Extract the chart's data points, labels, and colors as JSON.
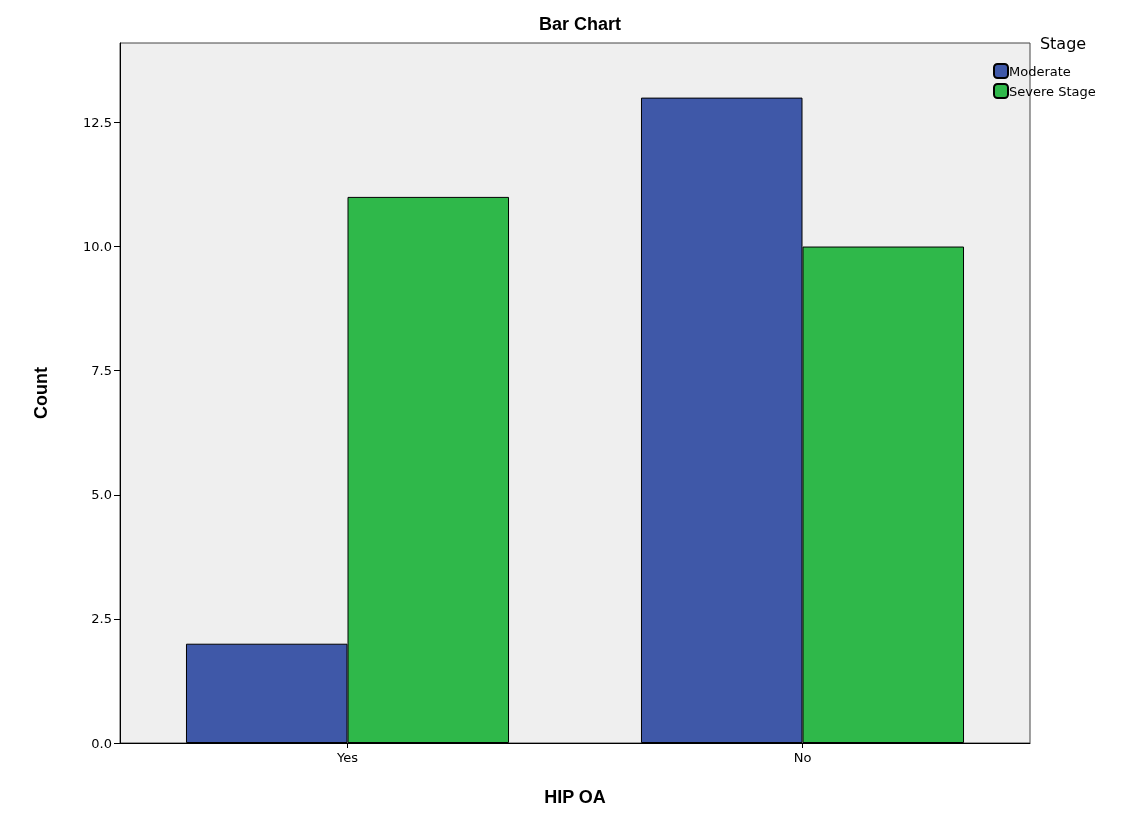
{
  "chart_data": {
    "type": "bar",
    "title": "Bar Chart",
    "xlabel": "HIP OA",
    "ylabel": "Count",
    "legend_title": "Stage",
    "categories": [
      "Yes",
      "No"
    ],
    "series": [
      {
        "name": "Moderate",
        "color": "#3f58a8",
        "values": [
          2,
          13
        ]
      },
      {
        "name": "Severe Stage",
        "color": "#2fb84a",
        "values": [
          11,
          10
        ]
      }
    ],
    "ylim": [
      0,
      14.1
    ],
    "yticks": [
      {
        "value": 0,
        "label": "0.0"
      },
      {
        "value": 2.5,
        "label": "2.5"
      },
      {
        "value": 5,
        "label": "5.0"
      },
      {
        "value": 7.5,
        "label": "7.5"
      },
      {
        "value": 10,
        "label": "10.0"
      },
      {
        "value": 12.5,
        "label": "12.5"
      }
    ],
    "grid": false,
    "legend": "top right"
  }
}
